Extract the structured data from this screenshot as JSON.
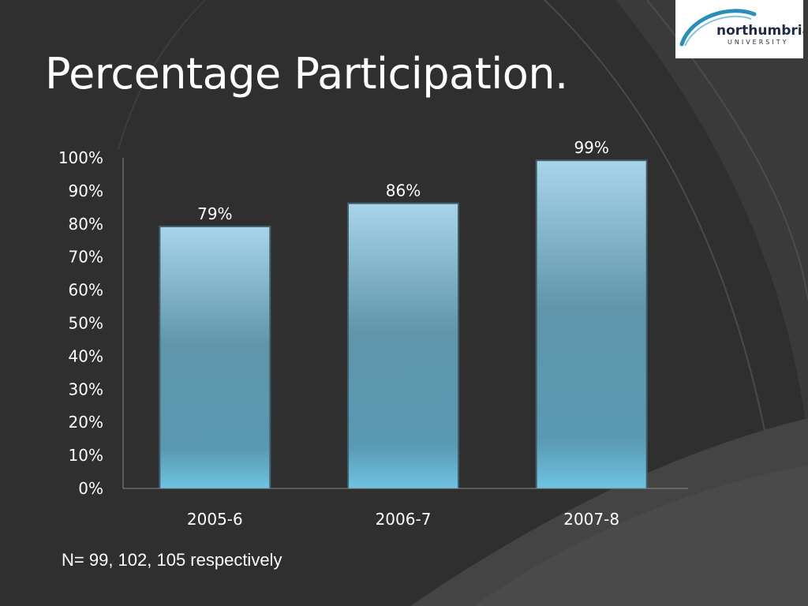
{
  "slide": {
    "title": "Percentage Participation.",
    "footnote": "N= 99, 102, 105 respectively"
  },
  "logo": {
    "name": "northumbria",
    "subtitle": "UNIVERSITY",
    "accent_color": "#2a8fb8"
  },
  "colors": {
    "background": "#2f2f2f",
    "bar_top": "#a8d4e8",
    "bar_mid": "#5a93a8",
    "bar_bottom": "#6ec4e2",
    "text": "#ffffff"
  },
  "chart_data": {
    "type": "bar",
    "categories": [
      "2005-6",
      "2006-7",
      "2007-8"
    ],
    "values": [
      79,
      86,
      99
    ],
    "data_labels": [
      "79%",
      "86%",
      "99%"
    ],
    "y_ticks": [
      "0%",
      "10%",
      "20%",
      "30%",
      "40%",
      "50%",
      "60%",
      "70%",
      "80%",
      "90%",
      "100%"
    ],
    "ylim": [
      0,
      100
    ],
    "title": "",
    "xlabel": "",
    "ylabel": "",
    "grid": false,
    "legend": "none"
  }
}
